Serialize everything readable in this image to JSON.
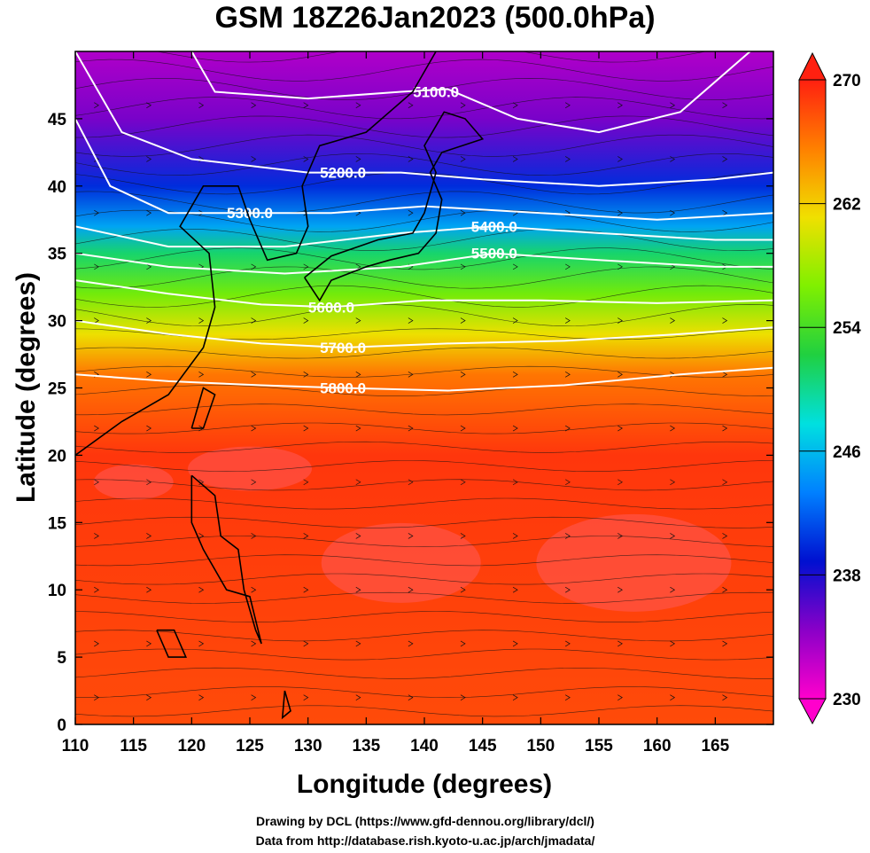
{
  "title": "GSM 18Z26Jan2023 (500.0hPa)",
  "xlabel": "Longitude (degrees)",
  "ylabel": "Latitude  (degrees)",
  "credits": [
    "Drawing by DCL (https://www.gfd-dennou.org/library/dcl/)",
    "Data from http://database.rish.kyoto-u.ac.jp/arch/jmadata/"
  ],
  "chart_data": {
    "type": "heatmap",
    "x_range": [
      110,
      170
    ],
    "y_range": [
      0,
      50
    ],
    "x_ticks": [
      "110",
      "115",
      "120",
      "125",
      "130",
      "135",
      "140",
      "145",
      "150",
      "155",
      "160",
      "165"
    ],
    "y_ticks": [
      "0",
      "5",
      "10",
      "15",
      "20",
      "25",
      "30",
      "35",
      "40",
      "45"
    ],
    "colorbar": {
      "range": [
        230,
        270
      ],
      "ticks": [
        "230",
        "238",
        "246",
        "254",
        "262",
        "270"
      ],
      "colors": [
        "#ff00cc",
        "#8a00c8",
        "#0010d0",
        "#0080ff",
        "#00e0e0",
        "#20d040",
        "#80f000",
        "#f0e000",
        "#ff8000",
        "#ff2010"
      ]
    },
    "temperature_bands": [
      {
        "lat": 50,
        "value": 233
      },
      {
        "lat": 45,
        "value": 235
      },
      {
        "lat": 40,
        "value": 240
      },
      {
        "lat": 37,
        "value": 245
      },
      {
        "lat": 35,
        "value": 251
      },
      {
        "lat": 32,
        "value": 256
      },
      {
        "lat": 29,
        "value": 261
      },
      {
        "lat": 26,
        "value": 266
      },
      {
        "lat": 20,
        "value": 269
      },
      {
        "lat": 0,
        "value": 268
      }
    ],
    "contours": [
      {
        "label": "5100.0",
        "lon": 141,
        "lat": 47
      },
      {
        "label": "5200.0",
        "lon": 133,
        "lat": 41
      },
      {
        "label": "5300.0",
        "lon": 125,
        "lat": 38
      },
      {
        "label": "5400.0",
        "lon": 146,
        "lat": 37
      },
      {
        "label": "5500.0",
        "lon": 146,
        "lat": 35
      },
      {
        "label": "5600.0",
        "lon": 132,
        "lat": 31
      },
      {
        "label": "5700.0",
        "lon": 133,
        "lat": 28
      },
      {
        "label": "5800.0",
        "lon": 133,
        "lat": 25
      }
    ]
  }
}
